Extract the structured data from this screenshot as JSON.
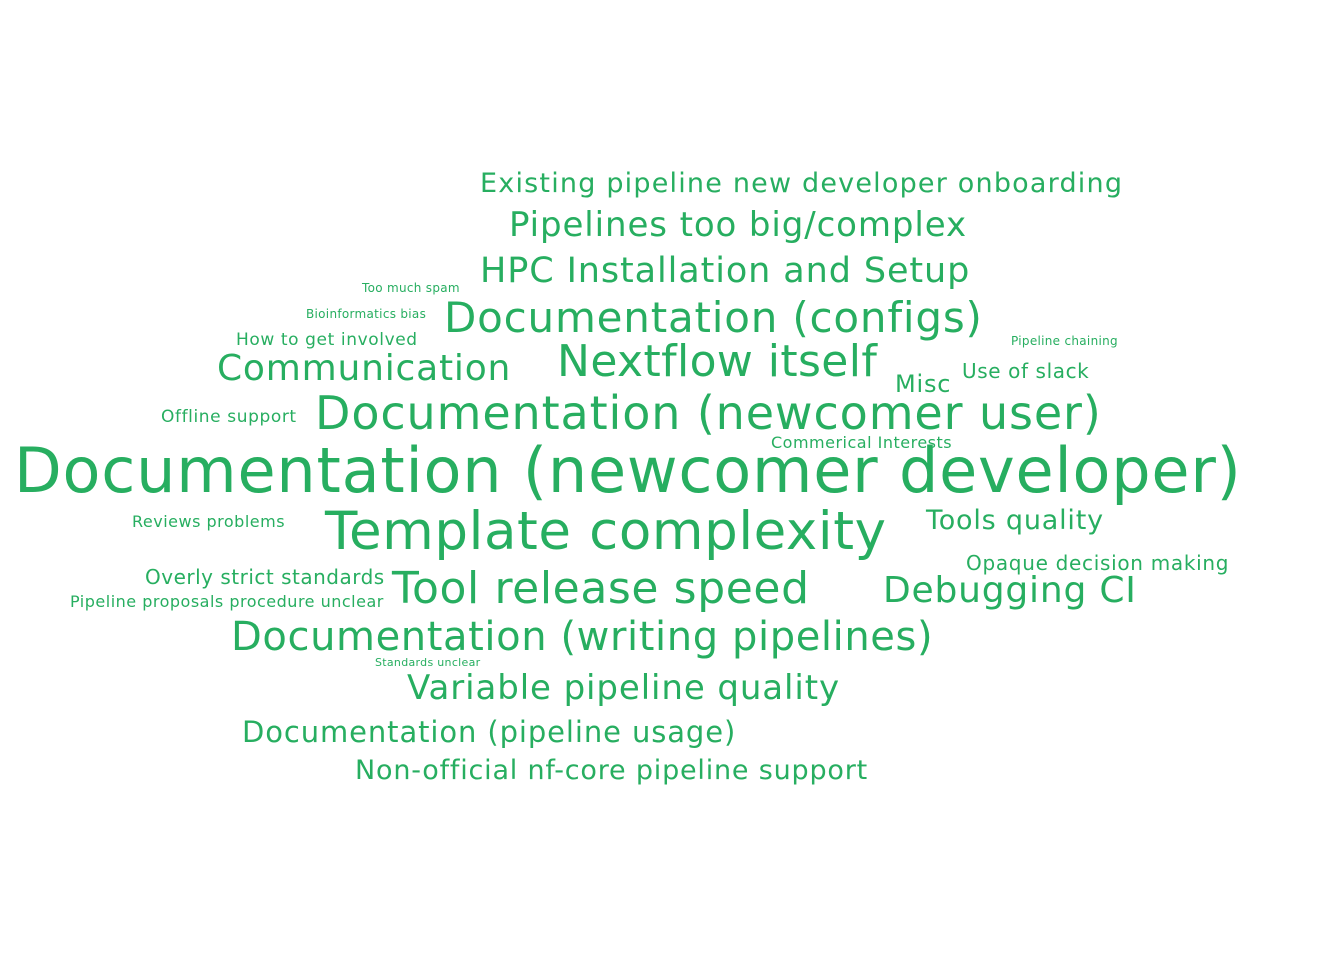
{
  "colors": {
    "background": "#ffffff",
    "word": "#27ae60"
  },
  "words": [
    {
      "text": "Documentation (newcomer developer)",
      "key": "documentation-newcomer-developer"
    },
    {
      "text": "Documentation (newcomer user)",
      "key": "documentation-newcomer-user"
    },
    {
      "text": "Template complexity",
      "key": "template-complexity"
    },
    {
      "text": "Nextflow itself",
      "key": "nextflow-itself"
    },
    {
      "text": "Tool release speed",
      "key": "tool-release-speed"
    },
    {
      "text": "Documentation (configs)",
      "key": "documentation-configs"
    },
    {
      "text": "Documentation (writing pipelines)",
      "key": "documentation-writing-pipelines"
    },
    {
      "text": "Pipelines too big/complex",
      "key": "pipelines-too-big-complex"
    },
    {
      "text": "HPC Installation and Setup",
      "key": "hpc-installation-and-setup"
    },
    {
      "text": "Debugging CI",
      "key": "debugging-ci"
    },
    {
      "text": "Communication",
      "key": "communication"
    },
    {
      "text": "Variable pipeline quality",
      "key": "variable-pipeline-quality"
    },
    {
      "text": "Documentation (pipeline usage)",
      "key": "documentation-pipeline-usage"
    },
    {
      "text": "Existing pipeline new developer onboarding",
      "key": "existing-pipeline-new-developer-onboarding"
    },
    {
      "text": "Non-official nf-core pipeline support",
      "key": "non-official-nf-core-pipeline-support"
    },
    {
      "text": "Tools quality",
      "key": "tools-quality"
    },
    {
      "text": "Misc",
      "key": "misc"
    },
    {
      "text": "Use of slack",
      "key": "use-of-slack"
    },
    {
      "text": "Opaque decision making",
      "key": "opaque-decision-making"
    },
    {
      "text": "Overly strict standards",
      "key": "overly-strict-standards"
    },
    {
      "text": "How to get involved",
      "key": "how-to-get-involved"
    },
    {
      "text": "Offline support",
      "key": "offline-support"
    },
    {
      "text": "Commerical Interests",
      "key": "commerical-interests"
    },
    {
      "text": "Reviews problems",
      "key": "reviews-problems"
    },
    {
      "text": "Pipeline proposals procedure unclear",
      "key": "pipeline-proposals-procedure-unclear"
    },
    {
      "text": "Too much spam",
      "key": "too-much-spam"
    },
    {
      "text": "Bioinformatics bias",
      "key": "bioinformatics-bias"
    },
    {
      "text": "Pipeline chaining",
      "key": "pipeline-chaining"
    },
    {
      "text": "Standards unclear",
      "key": "standards-unclear"
    }
  ]
}
